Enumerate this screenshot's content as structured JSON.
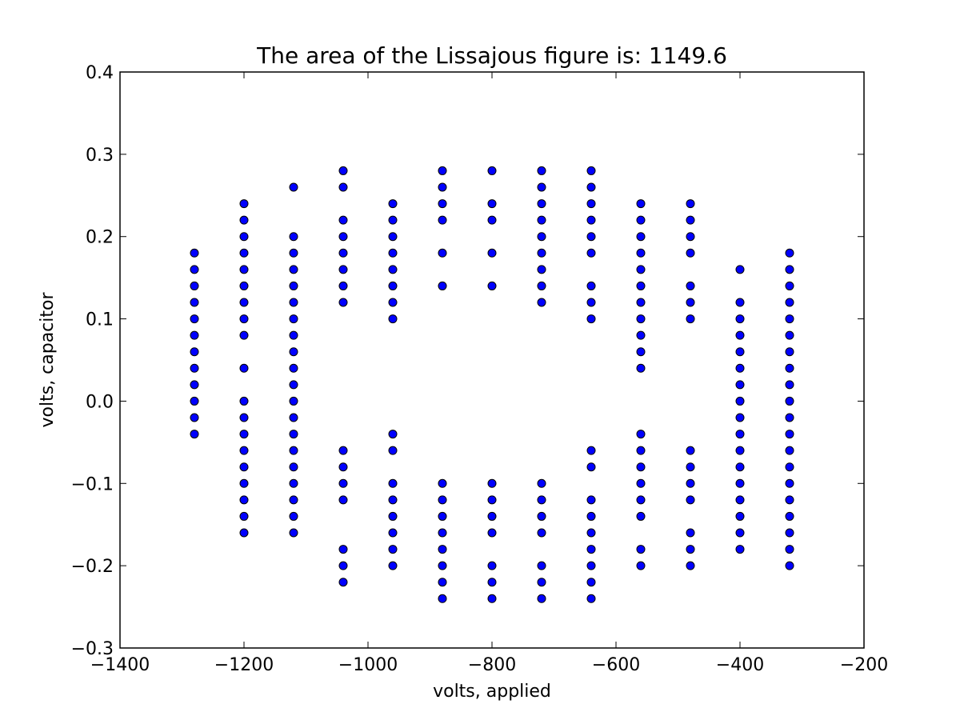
{
  "chart_data": {
    "type": "scatter",
    "title": "The area of the Lissajous figure is: 1149.6",
    "xlabel": "volts, applied",
    "ylabel": "volts, capacitor",
    "xlim": [
      -1400,
      -200
    ],
    "ylim": [
      -0.3,
      0.4
    ],
    "xticks": [
      -1400,
      -1200,
      -1000,
      -800,
      -600,
      -400,
      -200
    ],
    "xtick_labels": [
      "−1400",
      "−1200",
      "−1000",
      "−800",
      "−600",
      "−400",
      "−200"
    ],
    "yticks": [
      -0.3,
      -0.2,
      -0.1,
      0.0,
      0.1,
      0.2,
      0.3,
      0.4
    ],
    "ytick_labels": [
      "−0.3",
      "−0.2",
      "−0.1",
      "0.0",
      "0.1",
      "0.2",
      "0.3",
      "0.4"
    ],
    "grid": false,
    "marker_color": "#0000ff",
    "columns": [
      {
        "x": -1280,
        "y": [
          0.18,
          0.16,
          0.14,
          0.12,
          0.1,
          0.08,
          0.06,
          0.04,
          0.02,
          0.0,
          -0.02,
          -0.04
        ]
      },
      {
        "x": -1200,
        "y": [
          0.24,
          0.22,
          0.2,
          0.18,
          0.16,
          0.14,
          0.12,
          0.1,
          0.08,
          0.04,
          0.0,
          -0.02,
          -0.04,
          -0.06,
          -0.08,
          -0.1,
          -0.12,
          -0.14,
          -0.16
        ]
      },
      {
        "x": -1120,
        "y": [
          0.26,
          0.2,
          0.18,
          0.16,
          0.14,
          0.12,
          0.1,
          0.08,
          0.06,
          0.04,
          0.02,
          0.0,
          -0.02,
          -0.04,
          -0.06,
          -0.08,
          -0.1,
          -0.12,
          -0.14,
          -0.16
        ]
      },
      {
        "x": -1040,
        "y": [
          0.28,
          0.26,
          0.22,
          0.2,
          0.18,
          0.16,
          0.14,
          0.12,
          -0.06,
          -0.08,
          -0.1,
          -0.12,
          -0.18,
          -0.2,
          -0.22
        ]
      },
      {
        "x": -960,
        "y": [
          0.24,
          0.22,
          0.2,
          0.18,
          0.16,
          0.14,
          0.12,
          0.1,
          -0.04,
          -0.06,
          -0.1,
          -0.12,
          -0.14,
          -0.16,
          -0.18,
          -0.2
        ]
      },
      {
        "x": -880,
        "y": [
          0.28,
          0.26,
          0.24,
          0.22,
          0.18,
          0.14,
          -0.1,
          -0.12,
          -0.14,
          -0.16,
          -0.18,
          -0.2,
          -0.22,
          -0.24
        ]
      },
      {
        "x": -800,
        "y": [
          0.28,
          0.24,
          0.22,
          0.18,
          0.14,
          -0.1,
          -0.12,
          -0.14,
          -0.16,
          -0.2,
          -0.22,
          -0.24
        ]
      },
      {
        "x": -720,
        "y": [
          0.28,
          0.26,
          0.24,
          0.22,
          0.2,
          0.18,
          0.16,
          0.14,
          0.12,
          -0.1,
          -0.12,
          -0.14,
          -0.16,
          -0.2,
          -0.22,
          -0.24
        ]
      },
      {
        "x": -640,
        "y": [
          0.28,
          0.26,
          0.24,
          0.22,
          0.2,
          0.18,
          0.14,
          0.12,
          0.1,
          -0.06,
          -0.08,
          -0.12,
          -0.14,
          -0.16,
          -0.18,
          -0.2,
          -0.22,
          -0.24
        ]
      },
      {
        "x": -560,
        "y": [
          0.24,
          0.22,
          0.2,
          0.18,
          0.16,
          0.14,
          0.12,
          0.1,
          0.08,
          0.06,
          0.04,
          -0.04,
          -0.06,
          -0.08,
          -0.1,
          -0.12,
          -0.14,
          -0.18,
          -0.2
        ]
      },
      {
        "x": -480,
        "y": [
          0.24,
          0.22,
          0.2,
          0.18,
          0.14,
          0.12,
          0.1,
          -0.06,
          -0.08,
          -0.1,
          -0.12,
          -0.16,
          -0.18,
          -0.2
        ]
      },
      {
        "x": -400,
        "y": [
          0.16,
          0.12,
          0.1,
          0.08,
          0.06,
          0.04,
          0.02,
          0.0,
          -0.02,
          -0.04,
          -0.06,
          -0.08,
          -0.1,
          -0.12,
          -0.14,
          -0.16,
          -0.18
        ]
      },
      {
        "x": -320,
        "y": [
          0.18,
          0.16,
          0.14,
          0.12,
          0.1,
          0.08,
          0.06,
          0.04,
          0.02,
          0.0,
          -0.02,
          -0.04,
          -0.06,
          -0.08,
          -0.1,
          -0.12,
          -0.14,
          -0.16,
          -0.18,
          -0.2
        ]
      }
    ]
  }
}
